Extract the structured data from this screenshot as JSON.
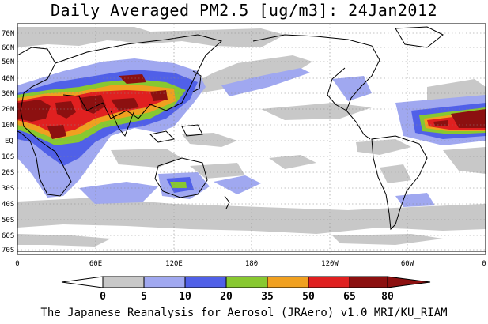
{
  "title": "Daily Averaged PM2.5 [ug/m3]: 24Jan2012",
  "footer": "The Japanese Reanalysis for Aerosol (JRAero) v1.0 MRI/KU_RIAM",
  "map": {
    "lat_labels": [
      "70N",
      "60N",
      "50N",
      "40N",
      "30N",
      "20N",
      "10N",
      "EQ",
      "10S",
      "20S",
      "30S",
      "40S",
      "50S",
      "60S",
      "70S"
    ],
    "lon_labels": [
      "0",
      "60E",
      "120E",
      "180",
      "120W",
      "60W",
      "0"
    ]
  },
  "colorbar": {
    "levels": [
      "0",
      "5",
      "10",
      "20",
      "35",
      "50",
      "65",
      "80"
    ],
    "colors": [
      "#ffffff",
      "#c8c8c8",
      "#a0a8f0",
      "#5060e8",
      "#88c830",
      "#f0a020",
      "#e02020",
      "#8c1010"
    ]
  }
}
